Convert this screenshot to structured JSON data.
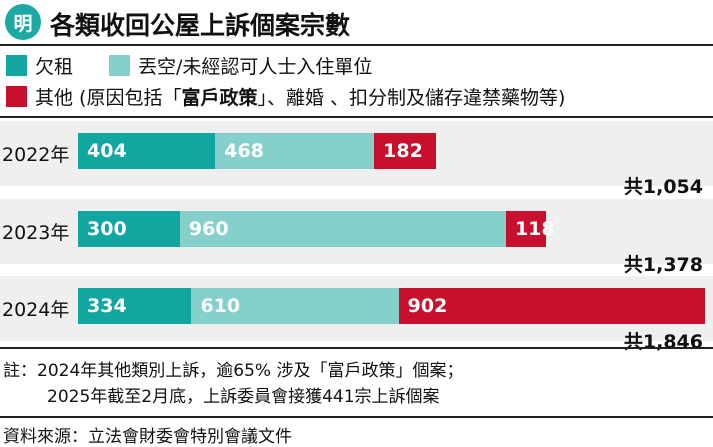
{
  "header": {
    "logo": "明",
    "title": "各類收回公屋上訴個案宗數"
  },
  "legend": {
    "items": [
      {
        "label": "欠租",
        "color": "#12a6a0"
      },
      {
        "label": "丟空/未經認可人士入住單位",
        "color": "#86d0cc"
      },
      {
        "label_prefix": "其他 (原因包括「",
        "label_bold": "富戶政策",
        "label_suffix": "」、離婚 、扣分制及儲存違禁藥物等)",
        "color": "#c8102e"
      }
    ]
  },
  "chart_data": {
    "type": "bar",
    "orientation": "horizontal",
    "stacked": true,
    "categories": [
      "2022年",
      "2023年",
      "2024年"
    ],
    "series": [
      {
        "name": "欠租",
        "values": [
          404,
          300,
          334
        ],
        "color": "#12a6a0"
      },
      {
        "name": "丟空/未經認可人士入住單位",
        "values": [
          468,
          960,
          610
        ],
        "color": "#86d0cc"
      },
      {
        "name": "其他",
        "values": [
          182,
          118,
          902
        ],
        "color": "#c8102e"
      }
    ],
    "value_labels": [
      [
        "404",
        "468",
        "182"
      ],
      [
        "300",
        "960",
        "118"
      ],
      [
        "334",
        "610",
        "902"
      ]
    ],
    "totals": [
      "共1,054",
      "共1,378",
      "共1,846"
    ],
    "xlim": [
      0,
      1846
    ]
  },
  "notes": {
    "line1": "註：2024年其他類別上訴，逾65% 涉及「富戶政策」個案；",
    "line2": "2025年截至2月底，上訴委員會接獲441宗上訴個案"
  },
  "source": "資料來源：立法會財委會特別會議文件"
}
